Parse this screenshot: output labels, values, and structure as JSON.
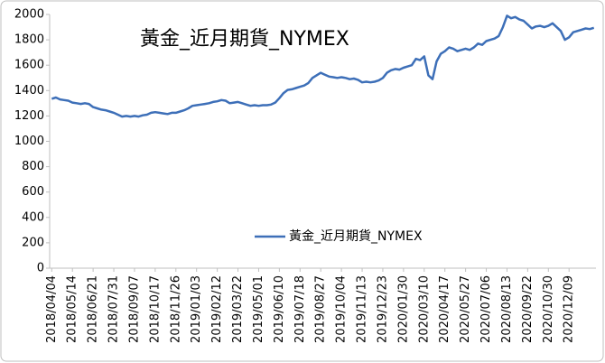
{
  "chart_data": {
    "type": "line",
    "title": "黃金_近月期貨_NYMEX",
    "categories": [
      "2018/04/04",
      null,
      null,
      null,
      null,
      "2018/05/14",
      null,
      null,
      null,
      null,
      "2018/06/21",
      null,
      null,
      null,
      null,
      "2018/07/31",
      null,
      null,
      null,
      null,
      "2018/09/07",
      null,
      null,
      null,
      null,
      "2018/10/17",
      null,
      null,
      null,
      null,
      "2018/11/26",
      null,
      null,
      null,
      null,
      "2019/01/03",
      null,
      null,
      null,
      null,
      "2019/02/12",
      null,
      null,
      null,
      null,
      "2019/03/22",
      null,
      null,
      null,
      null,
      "2019/05/01",
      null,
      null,
      null,
      null,
      "2019/06/10",
      null,
      null,
      null,
      null,
      "2019/07/18",
      null,
      null,
      null,
      null,
      "2019/08/27",
      null,
      null,
      null,
      null,
      "2019/10/04",
      null,
      null,
      null,
      null,
      "2019/11/13",
      null,
      null,
      null,
      null,
      "2019/12/23",
      null,
      null,
      null,
      null,
      "2020/01/30",
      null,
      null,
      null,
      null,
      "2020/03/10",
      null,
      null,
      null,
      null,
      "2020/04/17",
      null,
      null,
      null,
      null,
      "2020/05/27",
      null,
      null,
      null,
      null,
      "2020/07/06",
      null,
      null,
      null,
      null,
      "2020/08/13",
      null,
      null,
      null,
      null,
      "2020/09/22",
      null,
      null,
      null,
      null,
      "2020/10/30",
      null,
      null,
      null,
      null,
      "2020/12/09",
      null,
      null,
      null,
      null,
      null,
      null
    ],
    "series": [
      {
        "name": "黃金_近月期貨_NYMEX",
        "color": "#3d6fb8",
        "values": [
          1335,
          1345,
          1330,
          1325,
          1320,
          1305,
          1300,
          1295,
          1300,
          1295,
          1270,
          1260,
          1250,
          1245,
          1235,
          1225,
          1210,
          1195,
          1200,
          1195,
          1200,
          1195,
          1205,
          1210,
          1225,
          1230,
          1225,
          1220,
          1215,
          1225,
          1225,
          1235,
          1245,
          1260,
          1280,
          1285,
          1290,
          1295,
          1300,
          1310,
          1315,
          1325,
          1320,
          1300,
          1305,
          1310,
          1300,
          1290,
          1280,
          1285,
          1280,
          1285,
          1285,
          1290,
          1305,
          1340,
          1380,
          1405,
          1410,
          1420,
          1430,
          1440,
          1460,
          1500,
          1520,
          1540,
          1525,
          1510,
          1505,
          1500,
          1505,
          1500,
          1490,
          1495,
          1485,
          1465,
          1470,
          1465,
          1470,
          1480,
          1500,
          1540,
          1560,
          1570,
          1565,
          1580,
          1590,
          1600,
          1650,
          1640,
          1670,
          1520,
          1490,
          1630,
          1690,
          1710,
          1740,
          1730,
          1710,
          1720,
          1730,
          1720,
          1740,
          1770,
          1760,
          1790,
          1800,
          1810,
          1830,
          1900,
          1990,
          1970,
          1980,
          1960,
          1950,
          1920,
          1890,
          1905,
          1910,
          1900,
          1910,
          1930,
          1900,
          1870,
          1800,
          1820,
          1860,
          1870,
          1880,
          1890,
          1885,
          1895
        ]
      }
    ],
    "ylim": [
      0,
      2000
    ],
    "yticks": [
      0,
      200,
      400,
      600,
      800,
      1000,
      1200,
      1400,
      1600,
      1800,
      2000
    ],
    "legend": "center"
  }
}
